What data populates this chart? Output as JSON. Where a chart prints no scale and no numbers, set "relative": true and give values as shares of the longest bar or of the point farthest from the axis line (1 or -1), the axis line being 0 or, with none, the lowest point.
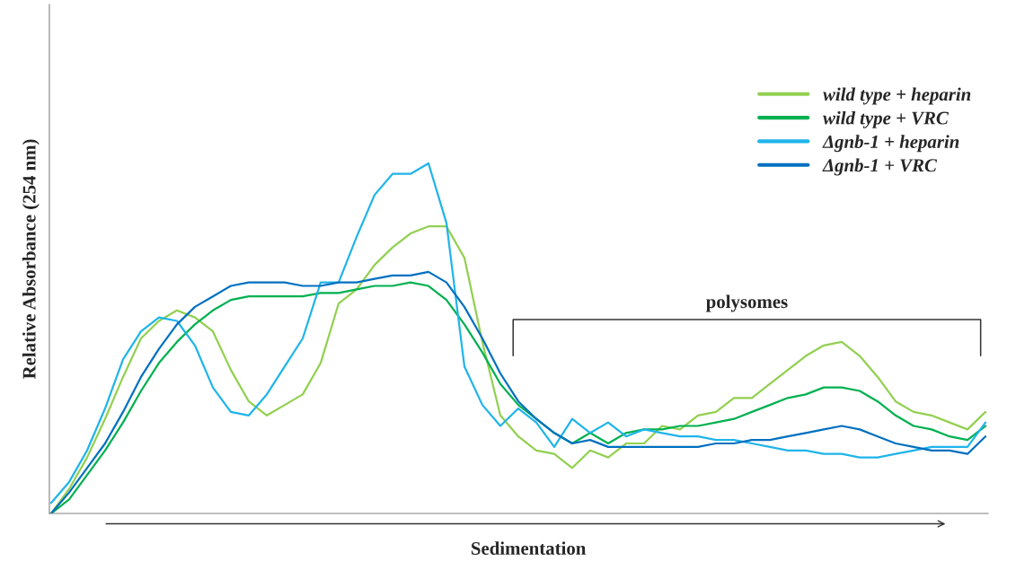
{
  "chart_data": {
    "type": "line",
    "relative": true,
    "xlabel": "Sedimentation",
    "ylabel": "Relative Absorbance (254 nm)",
    "annotations": [
      "polysomes"
    ],
    "legend": "top right",
    "grid": false,
    "marker": "none",
    "line_style": "solid",
    "categories": [
      null,
      null,
      null,
      null,
      null,
      null,
      null,
      null,
      null,
      null,
      null,
      null,
      null,
      null,
      null,
      null,
      null,
      null,
      null,
      null,
      null,
      null,
      null,
      null,
      null,
      null,
      null,
      null,
      null,
      null,
      null,
      null,
      null,
      null,
      null,
      null,
      null,
      null,
      null,
      null,
      null,
      null,
      null,
      null,
      null,
      null,
      null,
      null,
      null,
      null,
      null,
      null,
      null
    ],
    "series": [
      {
        "name": "wild type + heparin",
        "color": "#92d050",
        "values": [
          0,
          0.07,
          0.16,
          0.27,
          0.39,
          0.5,
          0.55,
          0.58,
          0.56,
          0.52,
          0.41,
          0.32,
          0.28,
          0.31,
          0.34,
          0.43,
          0.6,
          0.64,
          0.71,
          0.76,
          0.8,
          0.82,
          0.82,
          0.73,
          0.49,
          0.28,
          0.22,
          0.18,
          0.17,
          0.13,
          0.18,
          0.16,
          0.2,
          0.2,
          0.25,
          0.24,
          0.28,
          0.29,
          0.33,
          0.33,
          0.37,
          0.41,
          0.45,
          0.48,
          0.49,
          0.45,
          0.39,
          0.32,
          0.29,
          0.28,
          0.26,
          0.24,
          0.29
        ]
      },
      {
        "name": "wild type + VRC",
        "color": "#00b050",
        "values": [
          0,
          0.04,
          0.11,
          0.18,
          0.26,
          0.35,
          0.43,
          0.49,
          0.54,
          0.58,
          0.61,
          0.62,
          0.62,
          0.62,
          0.62,
          0.63,
          0.63,
          0.64,
          0.65,
          0.65,
          0.66,
          0.65,
          0.61,
          0.54,
          0.46,
          0.37,
          0.31,
          0.27,
          0.23,
          0.2,
          0.23,
          0.2,
          0.23,
          0.24,
          0.24,
          0.25,
          0.25,
          0.26,
          0.27,
          0.29,
          0.31,
          0.33,
          0.34,
          0.36,
          0.36,
          0.35,
          0.32,
          0.28,
          0.25,
          0.24,
          0.22,
          0.21,
          0.25
        ]
      },
      {
        "name": "Δgnb-1 + heparin",
        "color": "#1fb4ea",
        "values": [
          0.03,
          0.09,
          0.18,
          0.3,
          0.44,
          0.52,
          0.56,
          0.55,
          0.48,
          0.36,
          0.29,
          0.28,
          0.34,
          0.42,
          0.5,
          0.66,
          0.66,
          0.79,
          0.91,
          0.97,
          0.97,
          1.0,
          0.83,
          0.42,
          0.31,
          0.25,
          0.3,
          0.26,
          0.19,
          0.27,
          0.23,
          0.26,
          0.22,
          0.24,
          0.23,
          0.22,
          0.22,
          0.21,
          0.21,
          0.2,
          0.19,
          0.18,
          0.18,
          0.17,
          0.17,
          0.16,
          0.16,
          0.17,
          0.18,
          0.19,
          0.19,
          0.19,
          0.26
        ]
      },
      {
        "name": "Δgnb-1 + VRC",
        "color": "#0070c0",
        "values": [
          0,
          0.06,
          0.13,
          0.2,
          0.29,
          0.39,
          0.47,
          0.54,
          0.59,
          0.62,
          0.65,
          0.66,
          0.66,
          0.66,
          0.65,
          0.65,
          0.66,
          0.66,
          0.67,
          0.68,
          0.68,
          0.69,
          0.66,
          0.59,
          0.5,
          0.4,
          0.32,
          0.27,
          0.23,
          0.2,
          0.21,
          0.19,
          0.19,
          0.19,
          0.19,
          0.19,
          0.19,
          0.2,
          0.2,
          0.21,
          0.21,
          0.22,
          0.23,
          0.24,
          0.25,
          0.24,
          0.22,
          0.2,
          0.19,
          0.18,
          0.18,
          0.17,
          0.22
        ]
      }
    ]
  }
}
